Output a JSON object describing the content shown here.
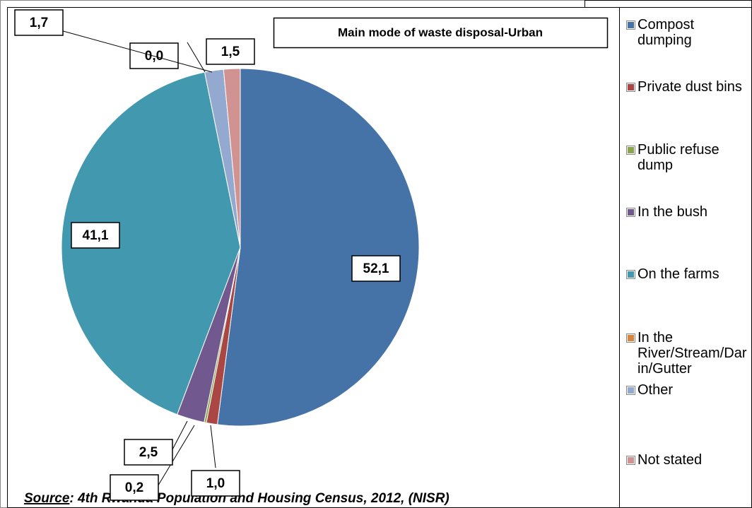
{
  "chart_data": {
    "type": "pie",
    "title": "Main mode of waste disposal-Urban",
    "source_label": "Source",
    "source_text": ": 4th Rwanda Population and Housing Census, 2012, (NISR)",
    "categories": [
      "Compost dumping",
      "Private dust bins",
      "Public refuse dump",
      "In the bush",
      "On the farms",
      "In the River/Stream/Darin/Gutter",
      "Other",
      "Not stated"
    ],
    "values": [
      52.1,
      1.0,
      0.2,
      2.5,
      41.1,
      0.0,
      1.7,
      1.5
    ],
    "value_labels": [
      "52,1",
      "1,0",
      "0,2",
      "2,5",
      "41,1",
      "0,0",
      "1,7",
      "1,5"
    ],
    "colors": [
      "#4572a7",
      "#aa4643",
      "#89a54e",
      "#71588f",
      "#4198af",
      "#db843d",
      "#93a9cf",
      "#d19392"
    ],
    "legend": "right"
  }
}
